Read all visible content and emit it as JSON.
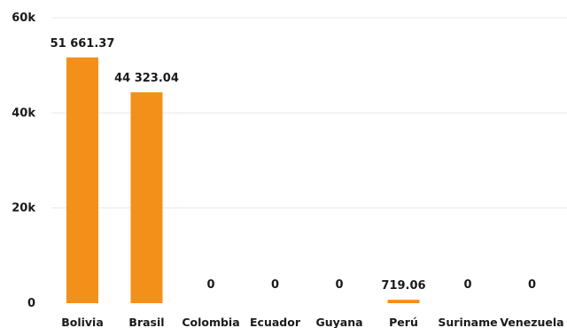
{
  "chart_data": {
    "type": "bar",
    "categories": [
      "Bolivia",
      "Brasil",
      "Colombia",
      "Ecuador",
      "Guyana",
      "Perú",
      "Suriname",
      "Venezuela"
    ],
    "values": [
      51661.37,
      44323.04,
      0,
      0,
      0,
      719.06,
      0,
      0
    ],
    "value_labels": [
      "51 661.37",
      "44 323.04",
      "0",
      "0",
      "0",
      "719.06",
      "0",
      "0"
    ],
    "ylim": [
      0,
      60000
    ],
    "y_ticks": [
      0,
      20000,
      40000,
      60000
    ],
    "y_tick_labels": [
      "0",
      "20k",
      "40k",
      "60k"
    ],
    "grid": true,
    "bar_color": "#F39019",
    "title": "",
    "xlabel": "",
    "ylabel": ""
  }
}
